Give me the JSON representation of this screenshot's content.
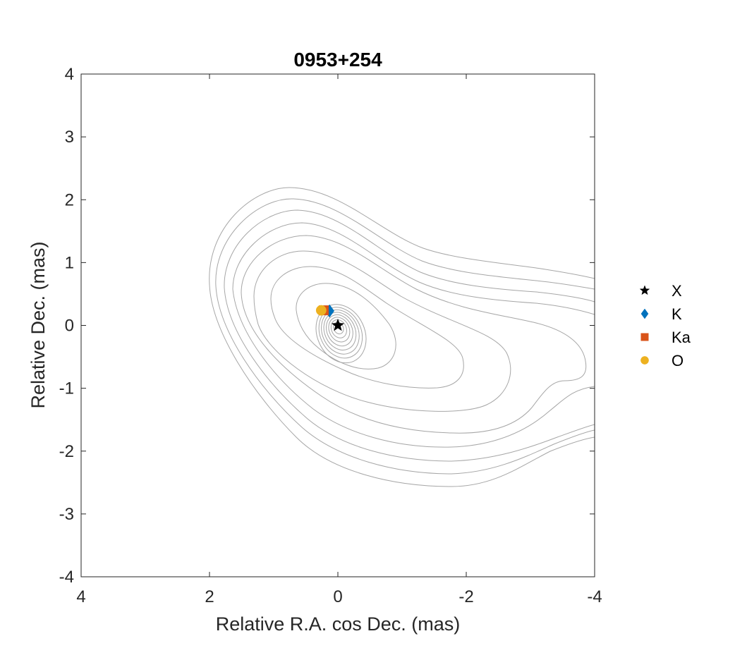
{
  "chart_data": {
    "type": "scatter",
    "title": "0953+254",
    "xlabel": "Relative R.A. cos Dec. (mas)",
    "ylabel": "Relative Dec. (mas)",
    "xlim": [
      4,
      -4
    ],
    "ylim": [
      -4,
      4
    ],
    "x_reversed": true,
    "xticks": [
      4,
      2,
      0,
      -2,
      -4
    ],
    "yticks": [
      4,
      3,
      2,
      1,
      0,
      -1,
      -2,
      -3,
      -4
    ],
    "xtick_labels": [
      "4",
      "2",
      "0",
      "-2",
      "-4"
    ],
    "ytick_labels": [
      "4",
      "3",
      "2",
      "1",
      "0",
      "-1",
      "-2",
      "-3",
      "-4"
    ],
    "grid": false,
    "legend_position": "outside-right",
    "series": [
      {
        "name": "X",
        "marker": "star",
        "color": "#000000",
        "points": [
          [
            0.0,
            0.0
          ]
        ]
      },
      {
        "name": "K",
        "marker": "diamond",
        "color": "#0072BD",
        "points": [
          [
            0.13,
            0.23
          ]
        ]
      },
      {
        "name": "Ka",
        "marker": "square",
        "color": "#D95319",
        "points": [
          [
            0.22,
            0.24
          ]
        ]
      },
      {
        "name": "O",
        "marker": "circle",
        "color": "#EDB120",
        "points": [
          [
            0.26,
            0.24
          ]
        ]
      }
    ],
    "contours": {
      "color": "#a6a6a6",
      "center": [
        0.0,
        -0.02
      ],
      "inner_radii": [
        0.09,
        0.14,
        0.19,
        0.24,
        0.29,
        0.34,
        0.39,
        0.45
      ]
    }
  }
}
